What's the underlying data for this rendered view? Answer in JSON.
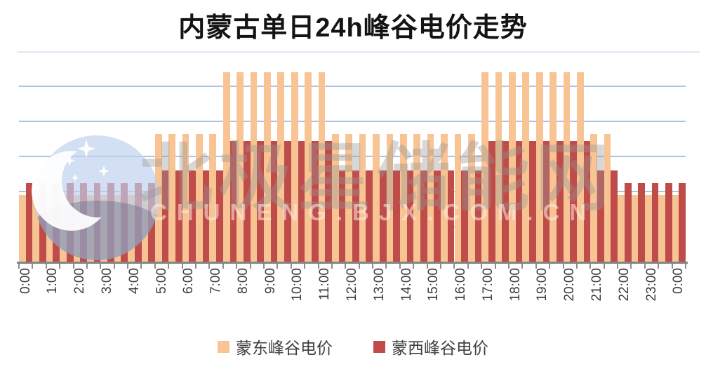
{
  "title": "内蒙古单日24h峰谷电价走势",
  "watermark": {
    "logo_icon": "crescent-moon-sparkles-badge",
    "text": "北极星储能网",
    "subtext": "CHUNENG.BJX.COM.CN"
  },
  "legend": {
    "items": [
      {
        "label": "蒙东峰谷电价",
        "color": "#F8C494"
      },
      {
        "label": "蒙西峰谷电价",
        "color": "#BF4C49"
      }
    ]
  },
  "colors": {
    "mengdong_bar": "#F8C494",
    "mengxi_bar": "#BF4C49",
    "gridline": "#AEC3E2",
    "top_gridline": "#DDE7F3",
    "axis": "#848484",
    "tick": "#8C8C8C",
    "x_label_text": "#3B3B3B",
    "title_text": "#141414",
    "legend_text": "#3F3F3F",
    "watermark_circle": "#C3D3EC"
  },
  "chart_data": {
    "type": "bar",
    "title": "内蒙古单日24h峰谷电价走势",
    "xlabel": "",
    "ylabel": "",
    "ylim": [
      0,
      0.6
    ],
    "grid_step": 0.1,
    "grid_on": true,
    "y_axis_labels_shown": false,
    "legend_position": "bottom",
    "bar_arrangement": "grouped-no-gap-half-hourly",
    "categories": [
      "0:00",
      "0:30",
      "1:00",
      "1:30",
      "2:00",
      "2:30",
      "3:00",
      "3:30",
      "4:00",
      "4:30",
      "5:00",
      "5:30",
      "6:00",
      "6:30",
      "7:00",
      "7:30",
      "8:00",
      "8:30",
      "9:00",
      "9:30",
      "10:00",
      "10:30",
      "11:00",
      "11:30",
      "12:00",
      "12:30",
      "13:00",
      "13:30",
      "14:00",
      "14:30",
      "15:00",
      "15:30",
      "16:00",
      "16:30",
      "17:00",
      "17:30",
      "18:00",
      "18:30",
      "19:00",
      "19:30",
      "20:00",
      "20:30",
      "21:00",
      "21:30",
      "22:00",
      "22:30",
      "23:00",
      "23:30",
      "0:00"
    ],
    "x_tick_labels": [
      "0:00",
      "1:00",
      "2:00",
      "3:00",
      "4:00",
      "5:00",
      "6:00",
      "7:00",
      "8:00",
      "9:00",
      "10:00",
      "11:00",
      "12:00",
      "13:00",
      "14:00",
      "15:00",
      "16:00",
      "17:00",
      "18:00",
      "19:00",
      "20:00",
      "21:00",
      "22:00",
      "23:00",
      "0:00"
    ],
    "series": [
      {
        "name": "蒙东峰谷电价",
        "color": "#F8C494",
        "values": [
          0.19,
          0.19,
          0.19,
          0.19,
          0.19,
          0.19,
          0.19,
          0.19,
          0.19,
          0.19,
          0.365,
          0.365,
          0.365,
          0.365,
          0.365,
          0.54,
          0.54,
          0.54,
          0.54,
          0.54,
          0.54,
          0.54,
          0.54,
          0.365,
          0.365,
          0.365,
          0.365,
          0.365,
          0.365,
          0.365,
          0.365,
          0.365,
          0.365,
          0.365,
          0.54,
          0.54,
          0.54,
          0.54,
          0.54,
          0.54,
          0.54,
          0.54,
          0.365,
          0.365,
          0.19,
          0.19,
          0.19,
          0.19,
          0.19
        ]
      },
      {
        "name": "蒙西峰谷电价",
        "color": "#BF4C49",
        "values": [
          0.225,
          0.225,
          0.225,
          0.225,
          0.225,
          0.225,
          0.225,
          0.225,
          0.225,
          0.225,
          0.26,
          0.26,
          0.26,
          0.26,
          0.26,
          0.345,
          0.345,
          0.345,
          0.345,
          0.345,
          0.345,
          0.345,
          0.345,
          0.26,
          0.26,
          0.26,
          0.26,
          0.26,
          0.26,
          0.26,
          0.26,
          0.26,
          0.26,
          0.26,
          0.345,
          0.345,
          0.345,
          0.345,
          0.345,
          0.345,
          0.345,
          0.345,
          0.26,
          0.26,
          0.225,
          0.225,
          0.225,
          0.225,
          0.225
        ]
      }
    ]
  }
}
